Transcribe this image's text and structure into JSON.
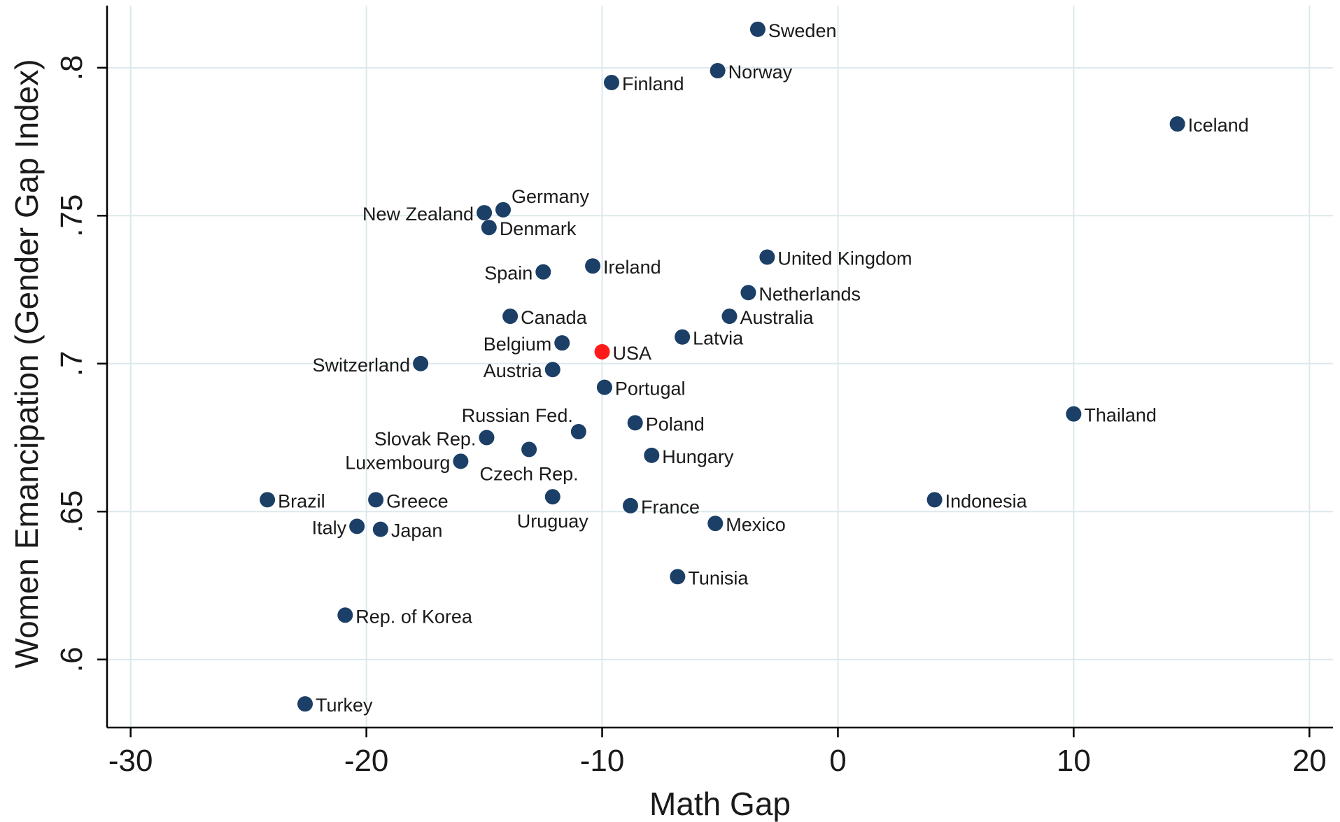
{
  "chart_data": {
    "type": "scatter",
    "title": "",
    "xlabel": "Math Gap",
    "ylabel": "Women Emancipation (Gender Gap Index)",
    "xlim": [
      -31,
      21
    ],
    "ylim": [
      0.577,
      0.821
    ],
    "xticks": [
      -30,
      -20,
      -10,
      0,
      10,
      20
    ],
    "xtick_labels": [
      "-30",
      "-20",
      "-10",
      "0",
      "10",
      "20"
    ],
    "yticks": [
      0.6,
      0.65,
      0.7,
      0.75,
      0.8
    ],
    "ytick_labels": [
      ".6",
      ".65",
      ".7",
      ".75",
      ".8"
    ],
    "grid": true,
    "colors": {
      "default": "#1b3f66",
      "highlight": "#ff1a1a"
    },
    "points": [
      {
        "label": "Sweden",
        "x": -3.4,
        "y": 0.813,
        "pos": "right"
      },
      {
        "label": "Norway",
        "x": -5.1,
        "y": 0.799,
        "pos": "right"
      },
      {
        "label": "Finland",
        "x": -9.6,
        "y": 0.795,
        "pos": "right"
      },
      {
        "label": "Iceland",
        "x": 14.4,
        "y": 0.781,
        "pos": "right"
      },
      {
        "label": "Germany",
        "x": -14.2,
        "y": 0.752,
        "pos": "above-right"
      },
      {
        "label": "New Zealand",
        "x": -15.0,
        "y": 0.751,
        "pos": "left"
      },
      {
        "label": "Denmark",
        "x": -14.8,
        "y": 0.746,
        "pos": "right"
      },
      {
        "label": "United Kingdom",
        "x": -3.0,
        "y": 0.736,
        "pos": "right"
      },
      {
        "label": "Ireland",
        "x": -10.4,
        "y": 0.733,
        "pos": "right"
      },
      {
        "label": "Spain",
        "x": -12.5,
        "y": 0.731,
        "pos": "left"
      },
      {
        "label": "Netherlands",
        "x": -3.8,
        "y": 0.724,
        "pos": "right"
      },
      {
        "label": "Canada",
        "x": -13.9,
        "y": 0.716,
        "pos": "right"
      },
      {
        "label": "Australia",
        "x": -4.6,
        "y": 0.716,
        "pos": "right"
      },
      {
        "label": "Latvia",
        "x": -6.6,
        "y": 0.709,
        "pos": "right"
      },
      {
        "label": "Belgium",
        "x": -11.7,
        "y": 0.707,
        "pos": "left"
      },
      {
        "label": "USA",
        "x": -10.0,
        "y": 0.704,
        "pos": "right",
        "highlight": true
      },
      {
        "label": "Switzerland",
        "x": -17.7,
        "y": 0.7,
        "pos": "left"
      },
      {
        "label": "Austria",
        "x": -12.1,
        "y": 0.698,
        "pos": "left"
      },
      {
        "label": "Portugal",
        "x": -9.9,
        "y": 0.692,
        "pos": "right"
      },
      {
        "label": "Thailand",
        "x": 10.0,
        "y": 0.683,
        "pos": "right"
      },
      {
        "label": "Poland",
        "x": -8.6,
        "y": 0.68,
        "pos": "right"
      },
      {
        "label": "Russian Fed.",
        "x": -11.0,
        "y": 0.677,
        "pos": "above-left"
      },
      {
        "label": "Slovak Rep.",
        "x": -14.9,
        "y": 0.675,
        "pos": "left"
      },
      {
        "label": "Czech Rep.",
        "x": -13.1,
        "y": 0.671,
        "pos": "below"
      },
      {
        "label": "Hungary",
        "x": -7.9,
        "y": 0.669,
        "pos": "right"
      },
      {
        "label": "Luxembourg",
        "x": -16.0,
        "y": 0.667,
        "pos": "left"
      },
      {
        "label": "Brazil",
        "x": -24.2,
        "y": 0.654,
        "pos": "right"
      },
      {
        "label": "Greece",
        "x": -19.6,
        "y": 0.654,
        "pos": "right"
      },
      {
        "label": "Indonesia",
        "x": 4.1,
        "y": 0.654,
        "pos": "right"
      },
      {
        "label": "Uruguay",
        "x": -12.1,
        "y": 0.655,
        "pos": "below"
      },
      {
        "label": "France",
        "x": -8.8,
        "y": 0.652,
        "pos": "right"
      },
      {
        "label": "Mexico",
        "x": -5.2,
        "y": 0.646,
        "pos": "right"
      },
      {
        "label": "Italy",
        "x": -20.4,
        "y": 0.645,
        "pos": "left"
      },
      {
        "label": "Japan",
        "x": -19.4,
        "y": 0.644,
        "pos": "right"
      },
      {
        "label": "Tunisia",
        "x": -6.8,
        "y": 0.628,
        "pos": "right"
      },
      {
        "label": "Rep. of Korea",
        "x": -20.9,
        "y": 0.615,
        "pos": "right"
      },
      {
        "label": "Turkey",
        "x": -22.6,
        "y": 0.585,
        "pos": "right"
      }
    ]
  }
}
